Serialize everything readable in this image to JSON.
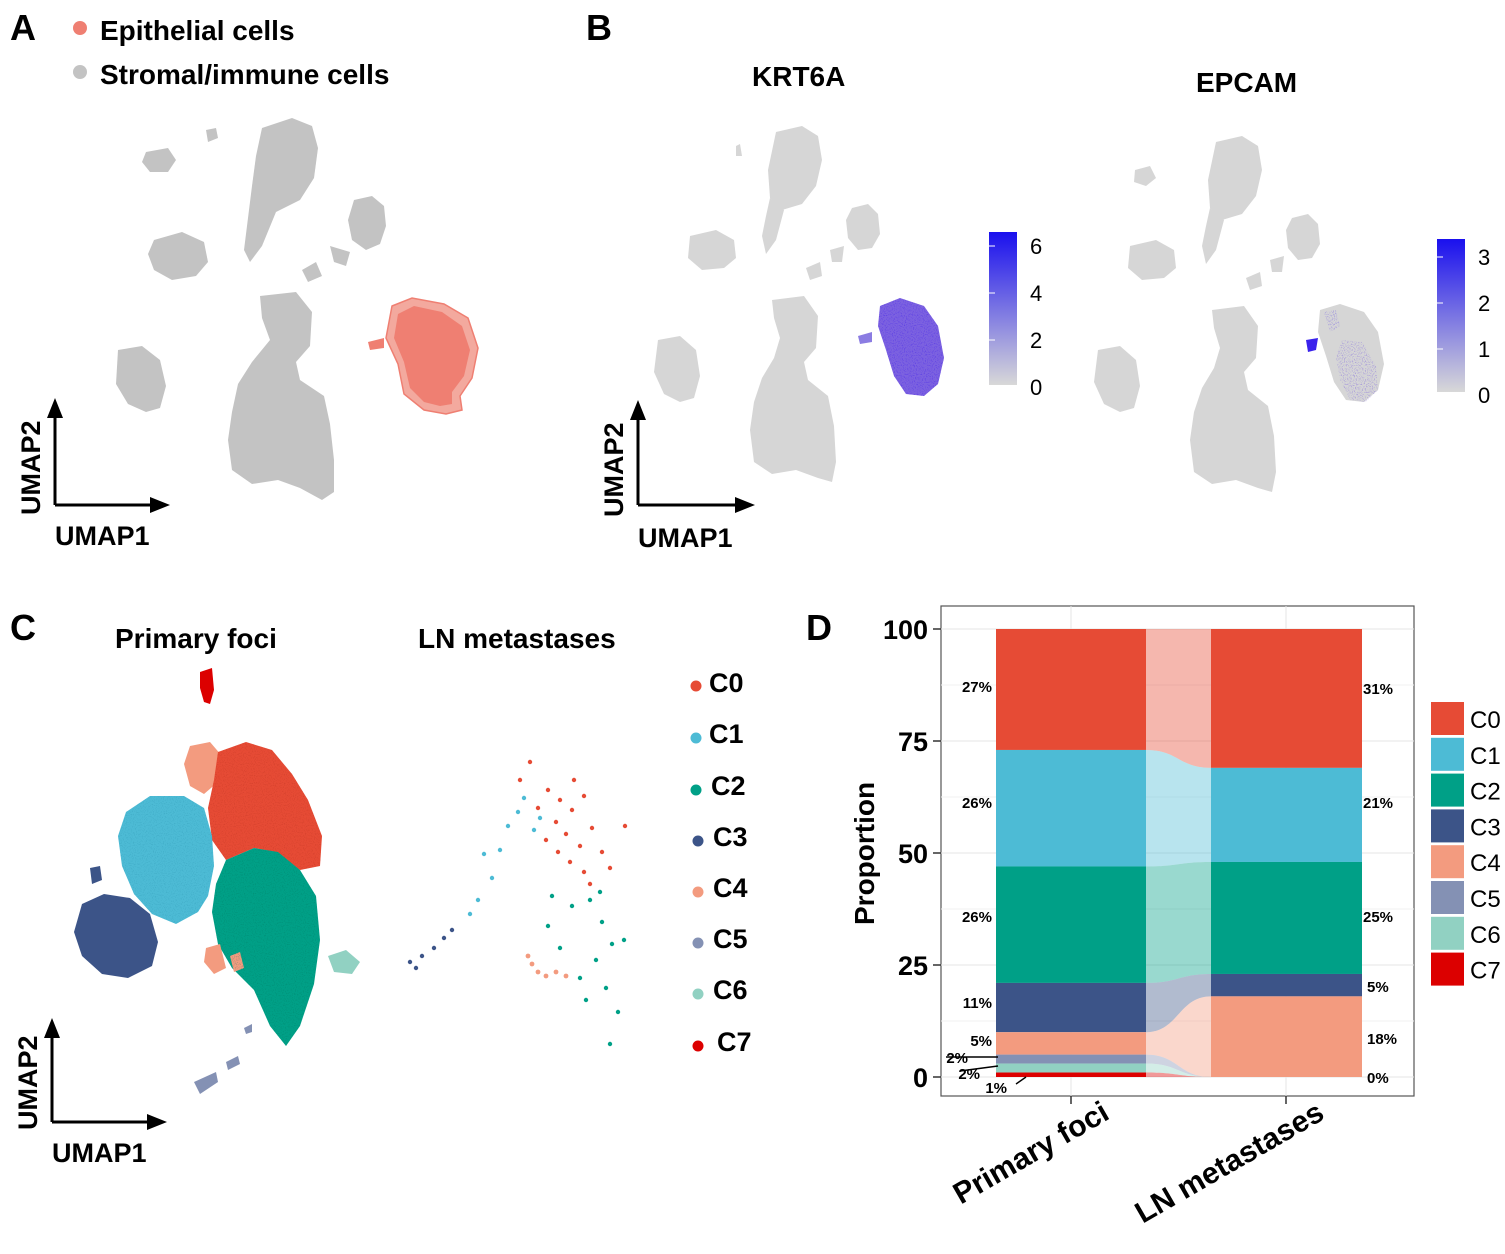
{
  "panels": {
    "a": "A",
    "b": "B",
    "c": "C",
    "d": "D"
  },
  "colors": {
    "grey": "#c3c3c3",
    "epithelial": "#ef7f72",
    "expr_high": "#1a10ee",
    "expr_low": "#d8d8d8",
    "C0": "#e64b35",
    "C1": "#4dbbd5",
    "C2": "#00a087",
    "C3": "#3c5488",
    "C4": "#f39b7f",
    "C5": "#8491b4",
    "C6": "#91d1c2",
    "C7": "#dc0000"
  },
  "chart_data": [
    {
      "type": "scatter",
      "panel": "A",
      "title": "",
      "legend": [
        "Epithelial cells",
        "Stromal/immune cells"
      ],
      "xlabel": "UMAP1",
      "ylabel": "UMAP2"
    },
    {
      "type": "scatter",
      "panel": "B",
      "xlabel": "UMAP1",
      "ylabel": "UMAP2",
      "subplots": [
        {
          "title": "KRT6A",
          "colorbar_ticks": [
            "6",
            "4",
            "2",
            "0"
          ],
          "range": [
            0,
            6.5
          ]
        },
        {
          "title": "EPCAM",
          "colorbar_ticks": [
            "3",
            "2",
            "1",
            "0"
          ],
          "range": [
            0,
            3.3
          ]
        }
      ]
    },
    {
      "type": "scatter",
      "panel": "C",
      "subplot_titles": [
        "Primary foci",
        "LN metastases"
      ],
      "legend": [
        "C0",
        "C1",
        "C2",
        "C3",
        "C4",
        "C5",
        "C6",
        "C7"
      ],
      "xlabel": "UMAP1",
      "ylabel": "UMAP2"
    },
    {
      "type": "bar",
      "panel": "D",
      "stacked": true,
      "categories": [
        "Primary foci",
        "LN metastases"
      ],
      "ylabel": "Proportion",
      "ylim": [
        0,
        100
      ],
      "yticks": [
        "0",
        "25",
        "50",
        "75",
        "100"
      ],
      "series": [
        {
          "name": "C0",
          "values": [
            27,
            31
          ],
          "labels": [
            "27%",
            "31%"
          ]
        },
        {
          "name": "C1",
          "values": [
            26,
            21
          ],
          "labels": [
            "26%",
            "21%"
          ]
        },
        {
          "name": "C2",
          "values": [
            26,
            25
          ],
          "labels": [
            "26%",
            "25%"
          ]
        },
        {
          "name": "C3",
          "values": [
            11,
            5
          ],
          "labels": [
            "11%",
            "5%"
          ]
        },
        {
          "name": "C4",
          "values": [
            5,
            18
          ],
          "labels": [
            "5%",
            "18%"
          ]
        },
        {
          "name": "C5",
          "values": [
            2,
            0
          ],
          "labels": [
            "2%",
            ""
          ]
        },
        {
          "name": "C6",
          "values": [
            2,
            0
          ],
          "labels": [
            "2%",
            ""
          ]
        },
        {
          "name": "C7",
          "values": [
            1,
            0
          ],
          "labels": [
            "1%",
            "0%"
          ]
        }
      ],
      "legend_position": "right"
    }
  ]
}
